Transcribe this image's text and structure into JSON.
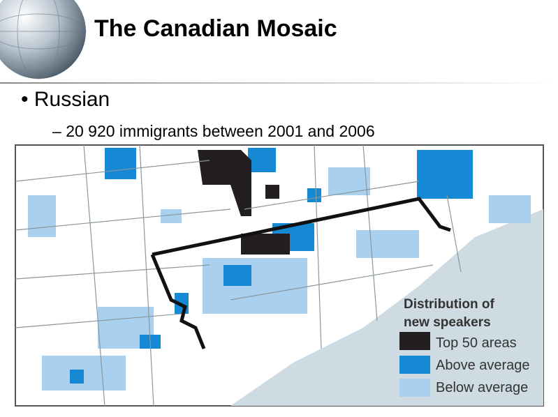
{
  "header": {
    "title": "The Canadian Mosaic"
  },
  "bullets": [
    {
      "text": "Russian",
      "sub": [
        "20 920 immigrants between 2001 and 2006"
      ]
    }
  ],
  "map": {
    "legend": {
      "title_lines": [
        "Distribution of",
        "new speakers"
      ],
      "items": [
        {
          "label": "Top 50 areas",
          "color": "#231f20"
        },
        {
          "label": "Above average",
          "color": "#1689d4"
        },
        {
          "label": "Below average",
          "color": "#a9d0ee"
        }
      ]
    }
  }
}
